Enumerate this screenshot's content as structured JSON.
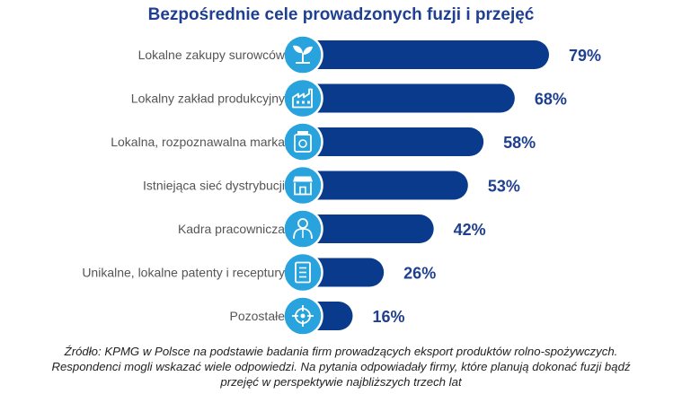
{
  "chart_data": {
    "type": "bar",
    "orientation": "horizontal",
    "title": "Bezpośrednie cele prowadzonych fuzji i przejęć",
    "categories": [
      "Lokalne zakupy surowców",
      "Lokalny zakład produkcyjny",
      "Lokalna, rozpoznawalna marka",
      "Istniejąca sieć dystrybucji",
      "Kadra pracownicza",
      "Unikalne, lokalne patenty i receptury",
      "Pozostałe"
    ],
    "values": [
      79,
      68,
      58,
      53,
      42,
      26,
      16
    ],
    "value_labels": [
      "79%",
      "68%",
      "58%",
      "53%",
      "42%",
      "26%",
      "16%"
    ],
    "icons": [
      "sprout-icon",
      "factory-icon",
      "brand-jar-icon",
      "storefront-icon",
      "worker-icon",
      "document-list-icon",
      "crosshair-icon"
    ],
    "unit": "%",
    "xlim": [
      0,
      100
    ],
    "grid": false,
    "legend": "none",
    "colors": {
      "bar": "#0a3a8c",
      "icon": "#29a3de",
      "title": "#1f3f8f",
      "label": "#555555",
      "value": "#1f3f8f"
    }
  },
  "footnote": {
    "lines": [
      "Źródło: KPMG w Polsce na podstawie badania firm prowadzących eksport produktów rolno-spożywczych.",
      "Respondenci mogli wskazać wiele odpowiedzi. Na pytania odpowiadały firmy, które planują dokonać fuzji bądź",
      "przejęć w perspektywie najbliższych trzech lat"
    ]
  }
}
